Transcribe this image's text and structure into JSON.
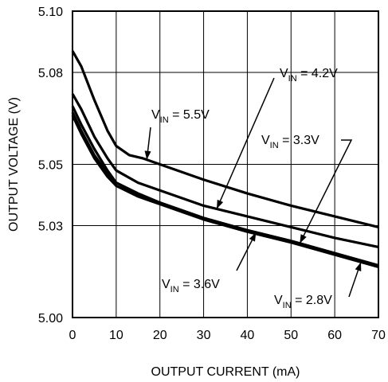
{
  "chart_data": {
    "type": "line",
    "xlabel": "OUTPUT CURRENT (mA)",
    "ylabel": "OUTPUT VOLTAGE (V)",
    "xlim": [
      0,
      70
    ],
    "ylim": [
      5.0,
      5.1
    ],
    "x_ticks": [
      0,
      10,
      20,
      30,
      40,
      50,
      60,
      70
    ],
    "y_ticks": [
      5.0,
      5.03,
      5.05,
      5.08,
      5.1
    ],
    "y_tick_labels": [
      "5.00",
      "5.03",
      "5.05",
      "5.08",
      "5.10"
    ],
    "grid": true,
    "series": [
      {
        "name": "V_IN = 5.5V",
        "label_main": "V",
        "label_sub": "IN",
        "label_rest": " = 5.5V",
        "x": [
          0,
          2,
          5,
          8,
          10,
          13,
          16,
          20,
          30,
          40,
          50,
          60,
          70
        ],
        "y": [
          5.087,
          5.082,
          5.071,
          5.061,
          5.056,
          5.053,
          5.052,
          5.05,
          5.045,
          5.0405,
          5.0365,
          5.033,
          5.0295
        ]
      },
      {
        "name": "V_IN = 4.2V",
        "label_main": "V",
        "label_sub": "IN",
        "label_rest": " = 4.2V",
        "x": [
          0,
          2,
          5,
          8,
          10,
          15,
          20,
          30,
          40,
          50,
          60,
          70
        ],
        "y": [
          5.073,
          5.068,
          5.059,
          5.052,
          5.048,
          5.044,
          5.0415,
          5.0365,
          5.033,
          5.0295,
          5.026,
          5.023
        ]
      },
      {
        "name": "V_IN = 3.3V",
        "label_main": "V",
        "label_sub": "IN",
        "label_rest": " = 3.3V",
        "x": [
          0,
          2,
          5,
          8,
          10,
          15,
          20,
          30,
          40,
          50,
          60,
          70
        ],
        "y": [
          5.069,
          5.063,
          5.055,
          5.048,
          5.044,
          5.0405,
          5.0375,
          5.0325,
          5.0285,
          5.025,
          5.021,
          5.017
        ]
      },
      {
        "name": "V_IN = 3.6V",
        "label_main": "V",
        "label_sub": "IN",
        "label_rest": " = 3.6V",
        "x": [
          0,
          2,
          5,
          8,
          10,
          15,
          20,
          30,
          40,
          50,
          60,
          70
        ],
        "y": [
          5.067,
          5.061,
          5.053,
          5.047,
          5.043,
          5.04,
          5.0375,
          5.0325,
          5.0285,
          5.025,
          5.021,
          5.017
        ]
      },
      {
        "name": "V_IN = 2.8V",
        "label_main": "V",
        "label_sub": "IN",
        "label_rest": " = 2.8V",
        "x": [
          0,
          2,
          5,
          8,
          10,
          15,
          20,
          30,
          40,
          50,
          60,
          70
        ],
        "y": [
          5.066,
          5.06,
          5.052,
          5.046,
          5.043,
          5.0395,
          5.037,
          5.032,
          5.028,
          5.0245,
          5.0205,
          5.0165
        ]
      }
    ]
  }
}
